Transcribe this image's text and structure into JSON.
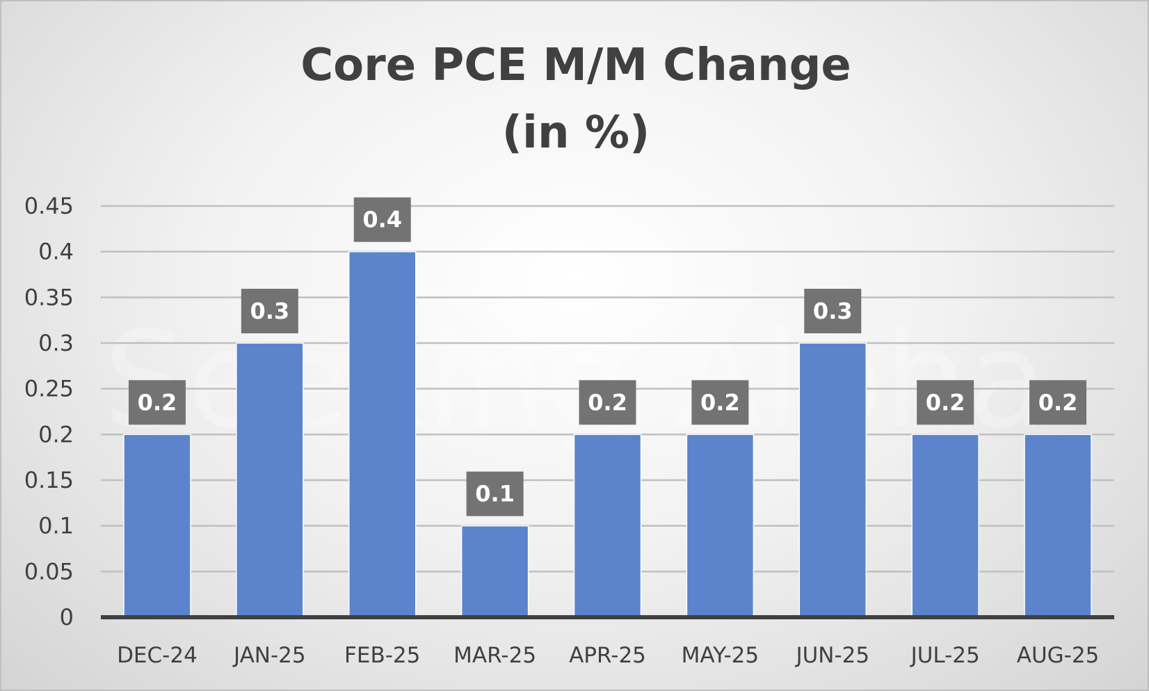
{
  "watermark_text": "Seeking Alpha",
  "chart_data": {
    "type": "bar",
    "title_lines": [
      "Core PCE M/M Change",
      "(in %)"
    ],
    "categories": [
      "DEC-24",
      "JAN-25",
      "FEB-25",
      "MAR-25",
      "APR-25",
      "MAY-25",
      "JUN-25",
      "JUL-25",
      "AUG-25"
    ],
    "values": [
      0.2,
      0.3,
      0.4,
      0.1,
      0.2,
      0.2,
      0.3,
      0.2,
      0.2
    ],
    "data_labels": [
      "0.2",
      "0.3",
      "0.4",
      "0.1",
      "0.2",
      "0.2",
      "0.3",
      "0.2",
      "0.2"
    ],
    "yticks": [
      "0",
      "0.05",
      "0.1",
      "0.15",
      "0.2",
      "0.25",
      "0.3",
      "0.35",
      "0.4",
      "0.45"
    ],
    "ylim": [
      0,
      0.45
    ],
    "xlabel": "",
    "ylabel": "",
    "grid": true,
    "legend": "none",
    "colors": {
      "bar": "#5b84cc",
      "bar_edge": "#ffffff",
      "label_box": "#737373",
      "grid": "#bfbfbf",
      "axis": "#404040"
    }
  }
}
